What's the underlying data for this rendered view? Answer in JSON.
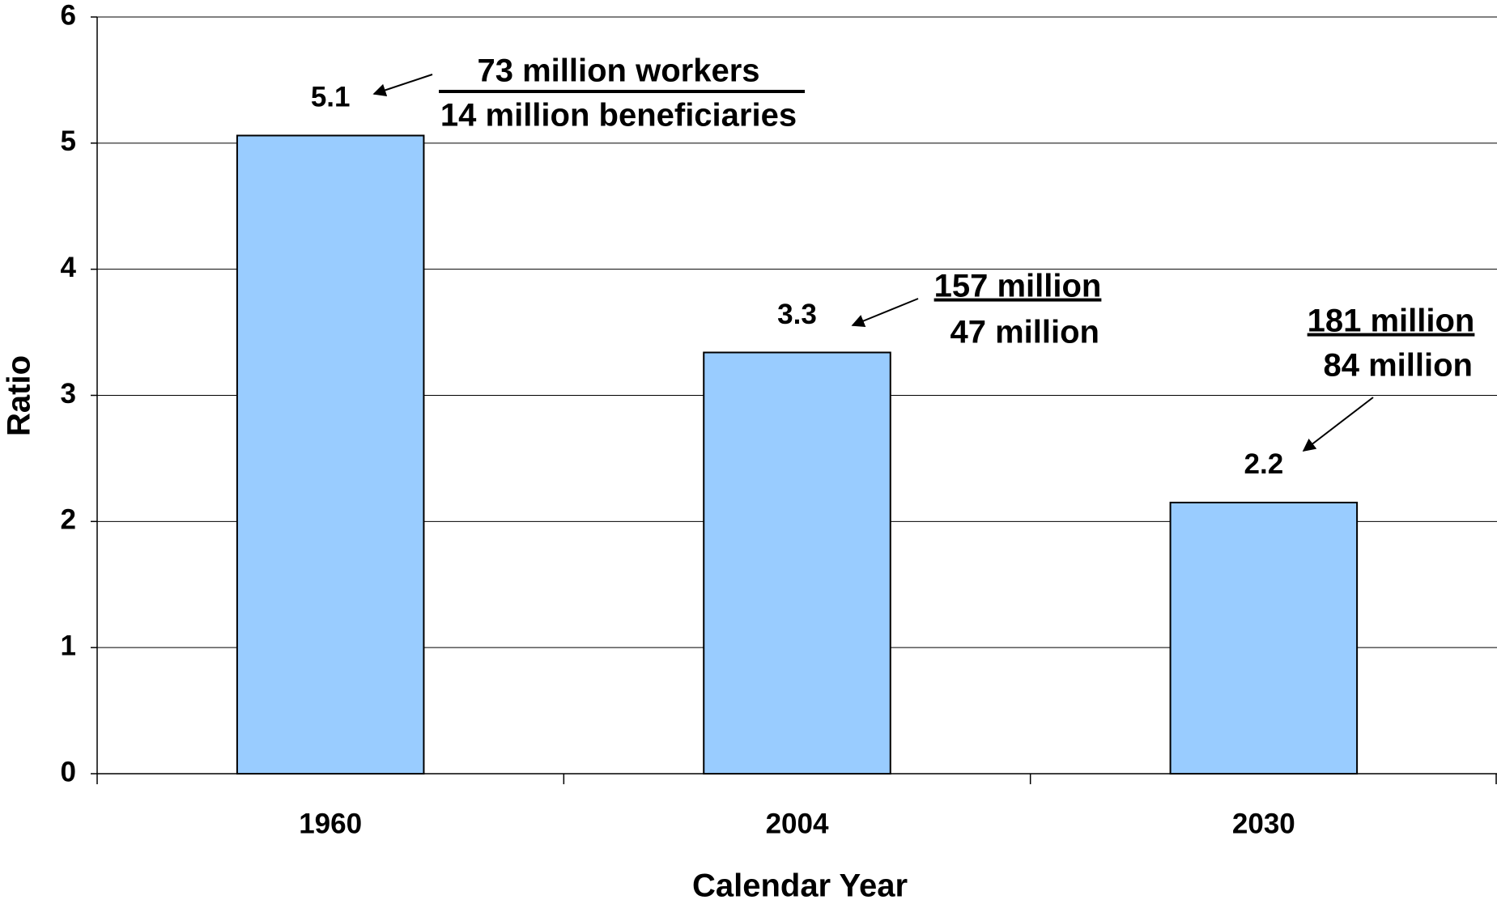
{
  "chart_data": {
    "type": "bar",
    "x_label": "Calendar Year",
    "y_label": "Ratio",
    "categories": [
      "1960",
      "2004",
      "2030"
    ],
    "values": [
      5.06,
      3.34,
      2.15
    ],
    "value_labels": [
      "5.1",
      "3.3",
      "2.2"
    ],
    "color": "#99ccff",
    "ylim": [
      0,
      6
    ],
    "yticks": [
      0,
      1,
      2,
      3,
      4,
      5,
      6
    ],
    "grid": true,
    "annotations": [
      {
        "numerator": "73 million workers",
        "denominator": "14 million beneficiaries"
      },
      {
        "numerator": "157 million",
        "denominator": "47 million"
      },
      {
        "numerator": "181 million",
        "denominator": "84 million"
      }
    ]
  }
}
